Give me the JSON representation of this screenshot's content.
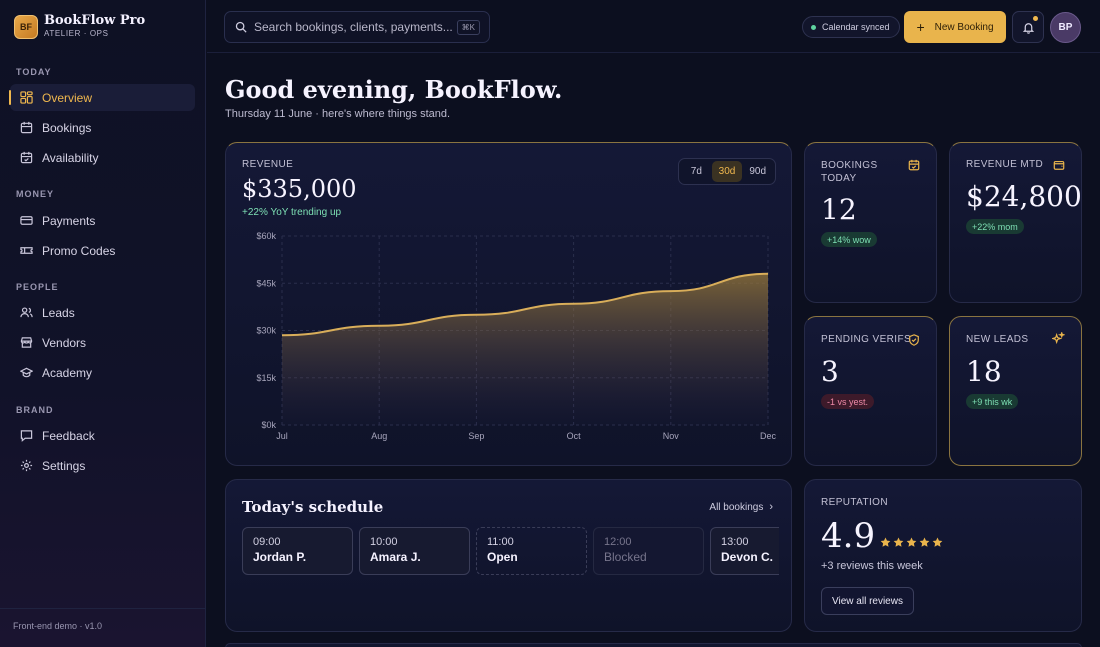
{
  "brand": {
    "logo": "BF",
    "name": "BookFlow Pro",
    "sub": "ATELIER · OPS"
  },
  "sidebar": {
    "sections": [
      {
        "label": "TODAY",
        "items": [
          {
            "label": "Overview",
            "icon": "grid-icon",
            "active": true
          },
          {
            "label": "Bookings",
            "icon": "calendar-icon"
          },
          {
            "label": "Availability",
            "icon": "calendar-check-icon"
          }
        ]
      },
      {
        "label": "MONEY",
        "items": [
          {
            "label": "Payments",
            "icon": "credit-card-icon"
          },
          {
            "label": "Promo Codes",
            "icon": "ticket-icon"
          }
        ]
      },
      {
        "label": "PEOPLE",
        "items": [
          {
            "label": "Leads",
            "icon": "users-icon"
          },
          {
            "label": "Vendors",
            "icon": "store-icon"
          },
          {
            "label": "Academy",
            "icon": "graduation-cap-icon"
          }
        ]
      },
      {
        "label": "BRAND",
        "items": [
          {
            "label": "Feedback",
            "icon": "message-icon"
          },
          {
            "label": "Settings",
            "icon": "gear-icon"
          }
        ]
      }
    ],
    "footer": "Front-end demo · v1.0"
  },
  "topbar": {
    "search_placeholder": "Search bookings, clients, payments...",
    "search_kbd": "⌘K",
    "sync_status": "Calendar synced",
    "new_booking": "New Booking",
    "avatar": "BP"
  },
  "greeting": {
    "title": "Good evening, BookFlow.",
    "subtitle": "Thursday 11 June · here's where things stand."
  },
  "revenue": {
    "label": "REVENUE",
    "value": "$335,000",
    "trend": "+22% YoY trending up",
    "ranges": [
      "7d",
      "30d",
      "90d"
    ],
    "selected_range": "30d"
  },
  "chart_data": {
    "type": "area",
    "categories": [
      "Jul",
      "Aug",
      "Sep",
      "Oct",
      "Nov",
      "Dec"
    ],
    "values": [
      28500,
      31500,
      35000,
      38500,
      42500,
      48000
    ],
    "ylim": [
      0,
      60000
    ],
    "yticks": [
      "$0k",
      "$15k",
      "$30k",
      "$45k",
      "$60k"
    ],
    "grid": true,
    "colors": {
      "line": "#d9ae5a",
      "fill": "#9a7a3a"
    }
  },
  "stats": [
    {
      "label": "BOOKINGS TODAY",
      "value": "12",
      "delta": "+14% wow",
      "tone": "green",
      "icon": "calendar-icon"
    },
    {
      "label": "REVENUE MTD",
      "value": "$24,800",
      "delta": "+22% mom",
      "tone": "green",
      "icon": "wallet-icon"
    },
    {
      "label": "PENDING VERIFS",
      "value": "3",
      "delta": "-1 vs yest.",
      "tone": "red",
      "icon": "shield-check-icon"
    },
    {
      "label": "NEW LEADS",
      "value": "18",
      "delta": "+9 this wk",
      "tone": "green",
      "icon": "sparkle-icon"
    }
  ],
  "schedule": {
    "title": "Today's schedule",
    "link": "All bookings",
    "slots": [
      {
        "time": "09:00",
        "name": "Jordan P.",
        "state": "booked"
      },
      {
        "time": "10:00",
        "name": "Amara J.",
        "state": "booked"
      },
      {
        "time": "11:00",
        "name": "Open",
        "state": "open"
      },
      {
        "time": "12:00",
        "name": "Blocked",
        "state": "blocked"
      },
      {
        "time": "13:00",
        "name": "Devon C.",
        "state": "booked"
      }
    ]
  },
  "reputation": {
    "label": "REPUTATION",
    "score": "4.9",
    "rating": 5,
    "reviews": "+3 reviews this week",
    "button": "View all reviews"
  },
  "colors": {
    "accent": "#e9b44c",
    "bg": "#0c0f1f",
    "green": "#7ee0b4",
    "red": "#f08aa8"
  }
}
